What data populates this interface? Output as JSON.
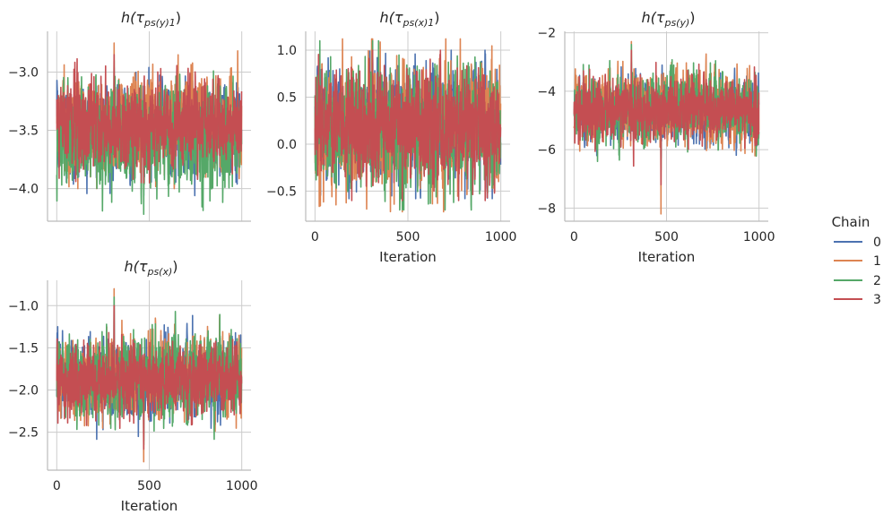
{
  "chart_data": {
    "type": "line",
    "legend": {
      "title": "Chain",
      "placement": "right",
      "entries": [
        "0",
        "1",
        "2",
        "3"
      ]
    },
    "series_colors": [
      "#4c72b0",
      "#dd8452",
      "#55a868",
      "#c44e52"
    ],
    "grid": true,
    "panels": [
      {
        "title_prefix": "h(τ",
        "title_sub": "ps(y)1",
        "title_suffix": ")",
        "xlabel": "",
        "show_x_ticklabels": false,
        "xlim": [
          -50,
          1050
        ],
        "ylim": [
          -4.28,
          -2.65
        ],
        "xticks": [
          0,
          500,
          1000
        ],
        "yticks": [
          -4.0,
          -3.5,
          -3.0
        ],
        "ytick_labels": [
          "−4.0",
          "−3.5",
          "−3.0"
        ],
        "series": [
          {
            "name": "0",
            "iterations": 1000,
            "mean": -3.5,
            "sd": 0.19,
            "min": -4.06,
            "max": -2.96
          },
          {
            "name": "1",
            "iterations": 1000,
            "mean": -3.45,
            "sd": 0.2,
            "min": -4.0,
            "max": -2.75
          },
          {
            "name": "2",
            "iterations": 1000,
            "mean": -3.55,
            "sd": 0.22,
            "min": -4.22,
            "max": -2.9
          },
          {
            "name": "3",
            "iterations": 1000,
            "mean": -3.45,
            "sd": 0.18,
            "min": -3.95,
            "max": -2.85
          }
        ]
      },
      {
        "title_prefix": "h(τ",
        "title_sub": "ps(x)1",
        "title_suffix": ")",
        "xlabel": "Iteration",
        "show_x_ticklabels": true,
        "xlim": [
          -50,
          1050
        ],
        "ylim": [
          -0.82,
          1.2
        ],
        "xticks": [
          0,
          500,
          1000
        ],
        "yticks": [
          -0.5,
          0.0,
          0.5,
          1.0
        ],
        "ytick_labels": [
          "−0.5",
          "0.0",
          "0.5",
          "1.0"
        ],
        "series": [
          {
            "name": "0",
            "iterations": 1000,
            "mean": 0.2,
            "sd": 0.3,
            "min": -0.58,
            "max": 1.0
          },
          {
            "name": "1",
            "iterations": 1000,
            "mean": 0.2,
            "sd": 0.32,
            "min": -0.72,
            "max": 1.12
          },
          {
            "name": "2",
            "iterations": 1000,
            "mean": 0.2,
            "sd": 0.31,
            "min": -0.7,
            "max": 1.1
          },
          {
            "name": "3",
            "iterations": 1000,
            "mean": 0.18,
            "sd": 0.28,
            "min": -0.6,
            "max": 1.0
          }
        ]
      },
      {
        "title_prefix": "h(τ",
        "title_sub": "ps(y)",
        "title_suffix": ")",
        "xlabel": "Iteration",
        "show_x_ticklabels": true,
        "xlim": [
          -50,
          1050
        ],
        "ylim": [
          -8.45,
          -1.95
        ],
        "xticks": [
          0,
          500,
          1000
        ],
        "yticks": [
          -8,
          -6,
          -4,
          -2
        ],
        "ytick_labels": [
          "−8",
          "−6",
          "−4",
          "−2"
        ],
        "series": [
          {
            "name": "0",
            "iterations": 1000,
            "mean": -4.7,
            "sd": 0.5,
            "min": -6.3,
            "max": -3.0
          },
          {
            "name": "1",
            "iterations": 1000,
            "mean": -4.6,
            "sd": 0.6,
            "min": -8.2,
            "max": -2.3
          },
          {
            "name": "2",
            "iterations": 1000,
            "mean": -4.6,
            "sd": 0.55,
            "min": -6.7,
            "max": -2.4
          },
          {
            "name": "3",
            "iterations": 1000,
            "mean": -4.6,
            "sd": 0.5,
            "min": -7.2,
            "max": -2.6
          }
        ]
      },
      {
        "title_prefix": "h(τ",
        "title_sub": "ps(x)",
        "title_suffix": ")",
        "xlabel": "Iteration",
        "show_x_ticklabels": true,
        "xlim": [
          -50,
          1050
        ],
        "ylim": [
          -2.95,
          -0.7
        ],
        "xticks": [
          0,
          500,
          1000
        ],
        "yticks": [
          -2.5,
          -2.0,
          -1.5,
          -1.0
        ],
        "ytick_labels": [
          "−2.5",
          "−2.0",
          "−1.5",
          "−1.0"
        ],
        "series": [
          {
            "name": "0",
            "iterations": 1000,
            "mean": -1.85,
            "sd": 0.22,
            "min": -2.6,
            "max": -1.0
          },
          {
            "name": "1",
            "iterations": 1000,
            "mean": -1.85,
            "sd": 0.24,
            "min": -2.85,
            "max": -0.8
          },
          {
            "name": "2",
            "iterations": 1000,
            "mean": -1.85,
            "sd": 0.23,
            "min": -2.65,
            "max": -0.9
          },
          {
            "name": "3",
            "iterations": 1000,
            "mean": -1.87,
            "sd": 0.2,
            "min": -2.7,
            "max": -1.0
          }
        ]
      }
    ]
  },
  "tick_labels": {
    "x": [
      "0",
      "500",
      "1000"
    ]
  }
}
